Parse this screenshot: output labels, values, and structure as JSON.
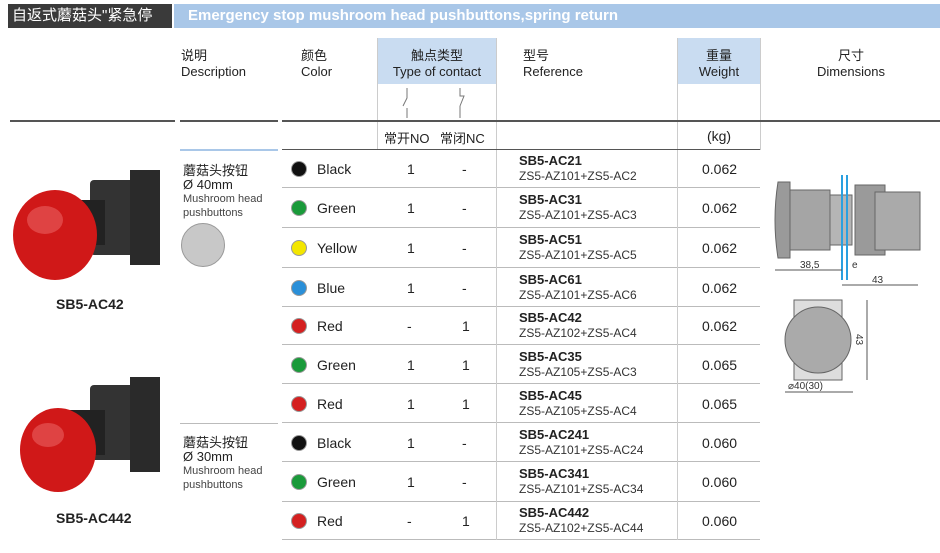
{
  "title": {
    "cn": "自返式蘑菇头\"紧急停止\"按钮",
    "en": "Emergency stop mushroom head pushbuttons,spring return"
  },
  "headers": {
    "description": {
      "cn": "说明",
      "en": "Description"
    },
    "color": {
      "cn": "颜色",
      "en": "Color"
    },
    "contact": {
      "cn": "触点类型",
      "en": "Type of contact",
      "no": "常开NO",
      "nc": "常闭NC"
    },
    "reference": {
      "cn": "型号",
      "en": "Reference"
    },
    "weight": {
      "cn": "重量",
      "en": "Weight",
      "unit": "(kg)"
    },
    "dimensions": {
      "cn": "尺寸",
      "en": "Dimensions"
    }
  },
  "products": [
    {
      "label": "SB5-AC42"
    },
    {
      "label": "SB5-AC442"
    }
  ],
  "groups": [
    {
      "cn": "蘑菇头按钮",
      "size": "Ø 40mm",
      "en": "Mushroom head pushbuttons"
    },
    {
      "cn": "蘑菇头按钮",
      "size": "Ø 30mm",
      "en": "Mushroom head pushbuttons"
    }
  ],
  "rows": [
    {
      "color": "Black",
      "hex": "#111111",
      "no": "1",
      "nc": "-",
      "ref": "SB5-AC21",
      "parts": "ZS5-AZ101+ZS5-AC2",
      "weight": "0.062"
    },
    {
      "color": "Green",
      "hex": "#1a9a3a",
      "no": "1",
      "nc": "-",
      "ref": "SB5-AC31",
      "parts": "ZS5-AZ101+ZS5-AC3",
      "weight": "0.062"
    },
    {
      "color": "Yellow",
      "hex": "#f3e600",
      "no": "1",
      "nc": "-",
      "ref": "SB5-AC51",
      "parts": "ZS5-AZ101+ZS5-AC5",
      "weight": "0.062"
    },
    {
      "color": "Blue",
      "hex": "#2a8fd8",
      "no": "1",
      "nc": "-",
      "ref": "SB5-AC61",
      "parts": "ZS5-AZ101+ZS5-AC6",
      "weight": "0.062"
    },
    {
      "color": "Red",
      "hex": "#d42020",
      "no": "-",
      "nc": "1",
      "ref": "SB5-AC42",
      "parts": "ZS5-AZ102+ZS5-AC4",
      "weight": "0.062"
    },
    {
      "color": "Green",
      "hex": "#1a9a3a",
      "no": "1",
      "nc": "1",
      "ref": "SB5-AC35",
      "parts": "ZS5-AZ105+ZS5-AC3",
      "weight": "0.065"
    },
    {
      "color": "Red",
      "hex": "#d42020",
      "no": "1",
      "nc": "1",
      "ref": "SB5-AC45",
      "parts": "ZS5-AZ105+ZS5-AC4",
      "weight": "0.065"
    },
    {
      "color": "Black",
      "hex": "#111111",
      "no": "1",
      "nc": "-",
      "ref": "SB5-AC241",
      "parts": "ZS5-AZ101+ZS5-AC24",
      "weight": "0.060"
    },
    {
      "color": "Green",
      "hex": "#1a9a3a",
      "no": "1",
      "nc": "-",
      "ref": "SB5-AC341",
      "parts": "ZS5-AZ101+ZS5-AC34",
      "weight": "0.060"
    },
    {
      "color": "Red",
      "hex": "#d42020",
      "no": "-",
      "nc": "1",
      "ref": "SB5-AC442",
      "parts": "ZS5-AZ102+ZS5-AC44",
      "weight": "0.060"
    }
  ],
  "dimensions": {
    "d1": "38,5",
    "e": "e",
    "d2": "43",
    "h": "43",
    "dia": "⌀40(30)"
  }
}
